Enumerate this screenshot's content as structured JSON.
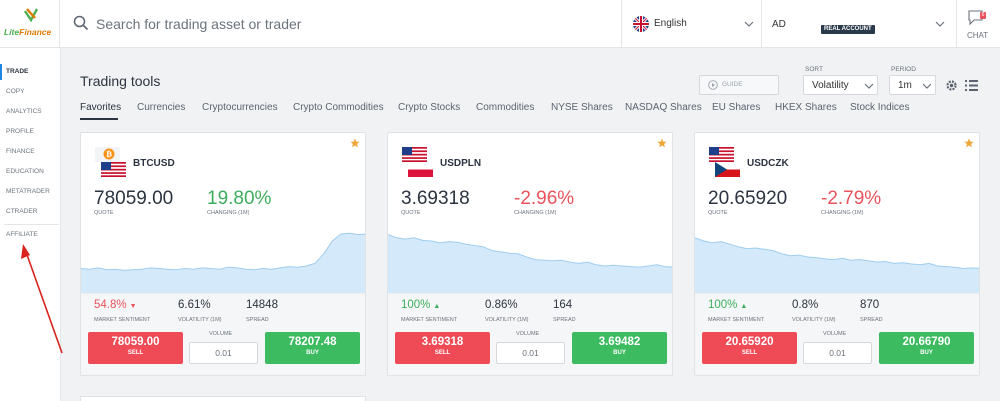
{
  "brand": {
    "logo_part1": "Lite",
    "logo_part2": "Finance"
  },
  "header": {
    "search_placeholder": "Search for trading asset or trader",
    "language": "English",
    "account_code": "AD",
    "account_badge": "REAL ACCOUNT",
    "chat_label": "CHAT",
    "chat_badge_count": "6"
  },
  "sidebar": {
    "items": [
      {
        "label": "TRADE",
        "active": true
      },
      {
        "label": "COPY"
      },
      {
        "label": "ANALYTICS"
      },
      {
        "label": "PROFILE"
      },
      {
        "label": "FINANCE"
      },
      {
        "label": "EDUCATION"
      },
      {
        "label": "METATRADER"
      },
      {
        "label": "CTRADER"
      },
      {
        "label": "AFFILIATE"
      }
    ]
  },
  "main": {
    "title": "Trading tools",
    "guide_label": "GUIDE",
    "sort": {
      "label": "SORT",
      "value": "Volatility"
    },
    "period": {
      "label": "PERIOD",
      "value": "1m"
    },
    "tabs": [
      {
        "label": "Favorites",
        "active": true
      },
      {
        "label": "Currencies"
      },
      {
        "label": "Cryptocurrencies"
      },
      {
        "label": "Crypto Commodities"
      },
      {
        "label": "Crypto Stocks"
      },
      {
        "label": "Commodities"
      },
      {
        "label": "NYSE Shares"
      },
      {
        "label": "NASDAQ Shares"
      },
      {
        "label": "EU Shares"
      },
      {
        "label": "HKEX Shares"
      },
      {
        "label": "Stock Indices"
      }
    ]
  },
  "labels": {
    "quote": "QUOTE",
    "changing": "CHANGING (1M)",
    "sentiment": "MARKET SENTIMENT",
    "volatility": "VOLATILITY (1M)",
    "spread": "SPREAD",
    "volume": "VOLUME",
    "sell": "SELL",
    "buy": "BUY"
  },
  "cards": [
    {
      "pair": "BTCUSD",
      "quote": "78059.00",
      "change": "19.80%",
      "change_color": "#3dae5c",
      "sentiment": "54.8%",
      "sentiment_dir": "▼",
      "sentiment_color": "#e9535c",
      "volatility": "6.61%",
      "spread": "14848",
      "volume": "0.01",
      "sell": "78059.00",
      "buy": "78207.48",
      "sparkline": [
        0.32,
        0.31,
        0.33,
        0.3,
        0.31,
        0.29,
        0.3,
        0.31,
        0.33,
        0.32,
        0.31,
        0.3,
        0.32,
        0.31,
        0.33,
        0.32,
        0.31,
        0.34,
        0.33,
        0.31,
        0.3,
        0.32,
        0.31,
        0.33,
        0.35,
        0.34,
        0.36,
        0.4,
        0.55,
        0.75,
        0.86,
        0.87,
        0.85,
        0.86
      ]
    },
    {
      "pair": "USDPLN",
      "quote": "3.69318",
      "change": "-2.96%",
      "change_color": "#e9535c",
      "sentiment": "100%",
      "sentiment_dir": "▲",
      "sentiment_color": "#3dae5c",
      "volatility": "0.86%",
      "spread": "164",
      "volume": "0.01",
      "sell": "3.69318",
      "buy": "3.69482",
      "sparkline": [
        0.85,
        0.8,
        0.78,
        0.8,
        0.76,
        0.75,
        0.72,
        0.74,
        0.73,
        0.7,
        0.68,
        0.66,
        0.6,
        0.58,
        0.56,
        0.55,
        0.5,
        0.46,
        0.45,
        0.44,
        0.45,
        0.42,
        0.4,
        0.42,
        0.38,
        0.36,
        0.37,
        0.36,
        0.35,
        0.34,
        0.36,
        0.38,
        0.35,
        0.34
      ]
    },
    {
      "pair": "USDCZK",
      "quote": "20.65920",
      "change": "-2.79%",
      "change_color": "#e9535c",
      "sentiment": "100%",
      "sentiment_dir": "▲",
      "sentiment_color": "#3dae5c",
      "volatility": "0.8%",
      "spread": "870",
      "volume": "0.01",
      "sell": "20.65920",
      "buy": "20.66790",
      "sparkline": [
        0.8,
        0.75,
        0.72,
        0.74,
        0.7,
        0.66,
        0.63,
        0.64,
        0.62,
        0.6,
        0.55,
        0.52,
        0.53,
        0.5,
        0.49,
        0.47,
        0.46,
        0.48,
        0.45,
        0.46,
        0.44,
        0.42,
        0.43,
        0.4,
        0.41,
        0.39,
        0.38,
        0.4,
        0.36,
        0.35,
        0.34,
        0.32,
        0.33,
        0.32
      ]
    }
  ]
}
